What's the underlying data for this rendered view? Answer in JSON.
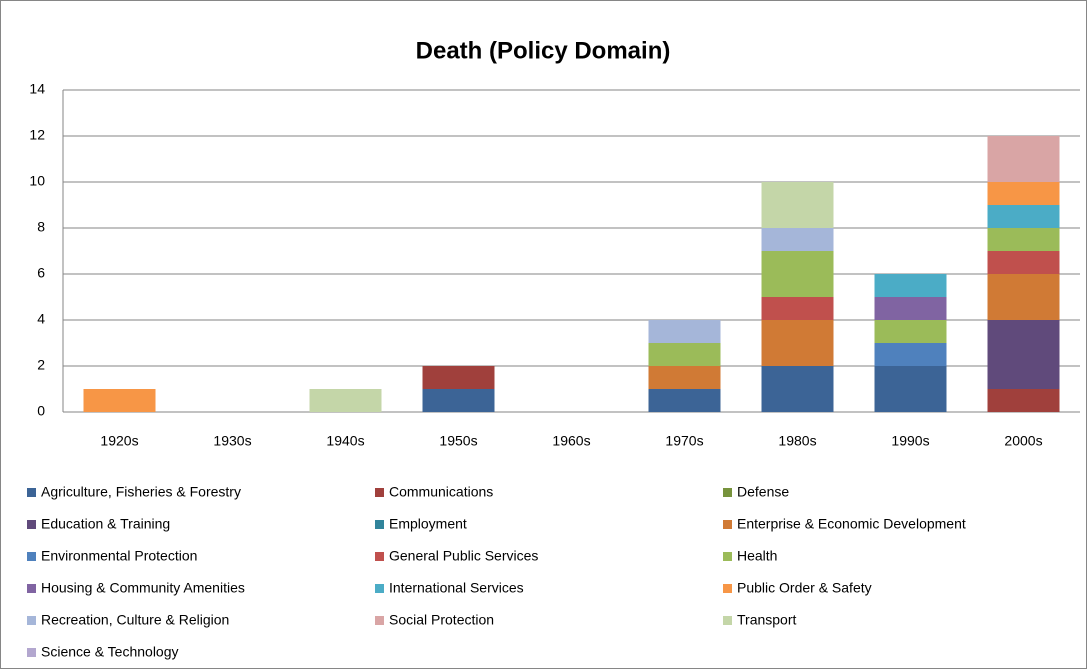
{
  "chart_data": {
    "type": "bar",
    "stacked": true,
    "title": "Death (Policy Domain)",
    "categories": [
      "1920s",
      "1930s",
      "1940s",
      "1950s",
      "1960s",
      "1970s",
      "1980s",
      "1990s",
      "2000s"
    ],
    "ylim": [
      0,
      14
    ],
    "yticks": [
      0,
      2,
      4,
      6,
      8,
      10,
      12,
      14
    ],
    "grid": true,
    "legend": "bottom",
    "series": [
      {
        "name": "Agriculture, Fisheries & Forestry",
        "color": "#3c6496",
        "values": [
          0,
          0,
          0,
          1,
          0,
          1,
          2,
          2,
          0
        ]
      },
      {
        "name": "Communications",
        "color": "#a0403c",
        "values": [
          0,
          0,
          0,
          1,
          0,
          0,
          0,
          0,
          1
        ]
      },
      {
        "name": "Defense",
        "color": "#77933c",
        "values": [
          0,
          0,
          0,
          0,
          0,
          0,
          0,
          0,
          0
        ]
      },
      {
        "name": "Education & Training",
        "color": "#604a7b",
        "values": [
          0,
          0,
          0,
          0,
          0,
          0,
          0,
          0,
          3
        ]
      },
      {
        "name": "Employment",
        "color": "#31849b",
        "values": [
          0,
          0,
          0,
          0,
          0,
          0,
          0,
          0,
          0
        ]
      },
      {
        "name": "Enterprise & Economic Development",
        "color": "#d07a35",
        "values": [
          0,
          0,
          0,
          0,
          0,
          1,
          2,
          0,
          2
        ]
      },
      {
        "name": "Environmental Protection",
        "color": "#4f81bd",
        "values": [
          0,
          0,
          0,
          0,
          0,
          0,
          0,
          1,
          0
        ]
      },
      {
        "name": "General Public Services",
        "color": "#c0504d",
        "values": [
          0,
          0,
          0,
          0,
          0,
          0,
          1,
          0,
          1
        ]
      },
      {
        "name": "Health",
        "color": "#9bbb59",
        "values": [
          0,
          0,
          0,
          0,
          0,
          1,
          2,
          1,
          1
        ]
      },
      {
        "name": "Housing & Community Amenities",
        "color": "#8064a2",
        "values": [
          0,
          0,
          0,
          0,
          0,
          0,
          0,
          1,
          0
        ]
      },
      {
        "name": "International Services",
        "color": "#4bacc6",
        "values": [
          0,
          0,
          0,
          0,
          0,
          0,
          0,
          1,
          1
        ]
      },
      {
        "name": "Public Order & Safety",
        "color": "#f79646",
        "values": [
          1,
          0,
          0,
          0,
          0,
          0,
          0,
          0,
          1
        ]
      },
      {
        "name": "Recreation, Culture & Religion",
        "color": "#a5b6d9",
        "values": [
          0,
          0,
          0,
          0,
          0,
          1,
          1,
          0,
          0
        ]
      },
      {
        "name": "Social Protection",
        "color": "#d9a5a5",
        "values": [
          0,
          0,
          0,
          0,
          0,
          0,
          0,
          0,
          2
        ]
      },
      {
        "name": "Transport",
        "color": "#c4d6a8",
        "values": [
          0,
          0,
          1,
          0,
          0,
          0,
          2,
          0,
          0
        ]
      },
      {
        "name": "Science & Technology",
        "color": "#b3a7cf",
        "values": [
          0,
          0,
          0,
          0,
          0,
          0,
          0,
          0,
          0
        ]
      }
    ]
  }
}
